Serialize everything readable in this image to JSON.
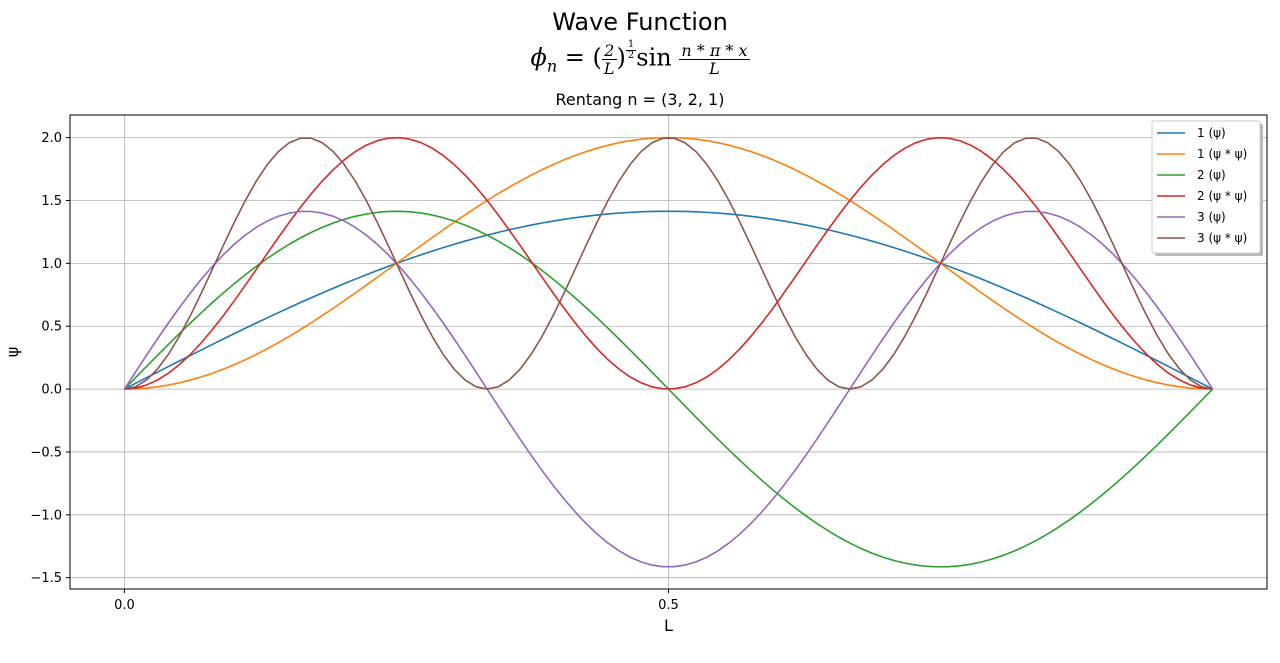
{
  "chart_data": {
    "type": "line",
    "title": "Wave Function",
    "formula": {
      "phi": "ϕ",
      "sub": "n",
      "eq": " = (",
      "frac_num": "2",
      "frac_den": "L",
      "close": ")",
      "exp_num": "1",
      "exp_den": "2",
      "sin": "sin",
      "arg_num": "n * π * x",
      "arg_den": "L"
    },
    "subtitle": "Rentang n = (3, 2, 1)",
    "xlabel": "L",
    "ylabel": "ψ",
    "xlim": [
      -0.05,
      1.05
    ],
    "ylim": [
      -1.59,
      2.18
    ],
    "xticks": [
      0.0,
      0.5
    ],
    "xtick_labels": [
      "0.0",
      "0.5"
    ],
    "yticks": [
      -1.5,
      -1.0,
      -0.5,
      0.0,
      0.5,
      1.0,
      1.5,
      2.0
    ],
    "ytick_labels": [
      "−1.5",
      "−1.0",
      "−0.5",
      "0.0",
      "0.5",
      "1.0",
      "1.5",
      "2.0"
    ],
    "grid": true,
    "legend_position": "top-right",
    "x_range": [
      0,
      1
    ],
    "series": [
      {
        "name": "1 (ψ)",
        "n": 1,
        "kind": "psi",
        "color": "#1f77b4"
      },
      {
        "name": "1 (ψ * ψ)",
        "n": 1,
        "kind": "psi2",
        "color": "#ff7f0e"
      },
      {
        "name": "2 (ψ)",
        "n": 2,
        "kind": "psi",
        "color": "#2ca02c"
      },
      {
        "name": "2 (ψ * ψ)",
        "n": 2,
        "kind": "psi2",
        "color": "#d62728"
      },
      {
        "name": "3 (ψ)",
        "n": 3,
        "kind": "psi",
        "color": "#9467bd"
      },
      {
        "name": "3 (ψ * ψ)",
        "n": 3,
        "kind": "psi2",
        "color": "#8c564b"
      }
    ]
  }
}
